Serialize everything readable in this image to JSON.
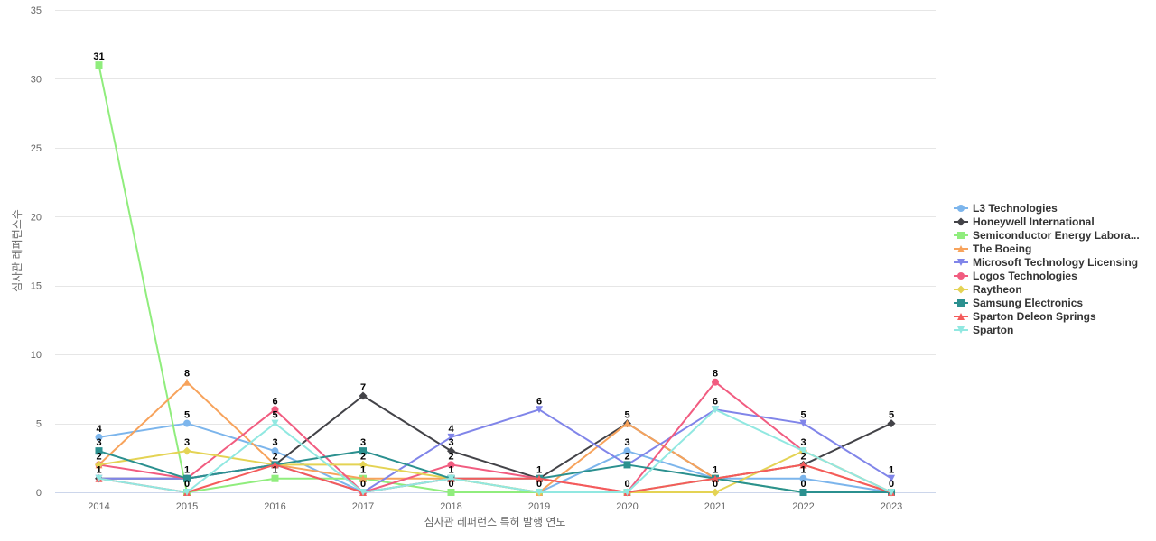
{
  "chart_data": {
    "type": "line",
    "title": "",
    "xlabel": "심사관 레퍼런스 특허 발행 연도",
    "ylabel": "심사관 레퍼런스수",
    "x": [
      "2014",
      "2015",
      "2016",
      "2017",
      "2018",
      "2019",
      "2020",
      "2021",
      "2022",
      "2023"
    ],
    "ylim": [
      0,
      35
    ],
    "yticks": [
      0,
      5,
      10,
      15,
      20,
      25,
      30,
      35
    ],
    "grid": true,
    "legend_position": "right",
    "series": [
      {
        "name": "L3 Technologies",
        "values": [
          4,
          5,
          3,
          0,
          1,
          0,
          3,
          1,
          1,
          0
        ],
        "color": "#7cb5ec",
        "marker": "circle"
      },
      {
        "name": "Honeywell International",
        "values": [
          1,
          1,
          2,
          7,
          3,
          1,
          5,
          1,
          2,
          5
        ],
        "color": "#434348",
        "marker": "diamond"
      },
      {
        "name": "Semiconductor Energy Labora...",
        "values": [
          31,
          0,
          1,
          1,
          0,
          0,
          0,
          1,
          0,
          0
        ],
        "color": "#90ed7d",
        "marker": "square"
      },
      {
        "name": "The Boeing",
        "values": [
          2,
          8,
          2,
          1,
          1,
          0,
          5,
          1,
          2,
          0
        ],
        "color": "#f7a35c",
        "marker": "triangle"
      },
      {
        "name": "Microsoft Technology Licensing",
        "values": [
          1,
          1,
          2,
          0,
          4,
          6,
          2,
          6,
          5,
          1
        ],
        "color": "#8085e9",
        "marker": "triangle-down"
      },
      {
        "name": "Logos Technologies",
        "values": [
          2,
          1,
          6,
          0,
          2,
          1,
          0,
          8,
          3,
          0
        ],
        "color": "#f15c80",
        "marker": "circle"
      },
      {
        "name": "Raytheon",
        "values": [
          2,
          3,
          2,
          2,
          1,
          0,
          0,
          0,
          3,
          0
        ],
        "color": "#e4d354",
        "marker": "diamond"
      },
      {
        "name": "Samsung Electronics",
        "values": [
          3,
          1,
          2,
          3,
          1,
          1,
          2,
          1,
          0,
          0
        ],
        "color": "#2b908f",
        "marker": "square"
      },
      {
        "name": "Sparton Deleon Springs",
        "values": [
          1,
          0,
          2,
          0,
          1,
          1,
          0,
          1,
          2,
          0
        ],
        "color": "#f45b5b",
        "marker": "triangle"
      },
      {
        "name": "Sparton",
        "values": [
          1,
          0,
          5,
          0,
          1,
          0,
          0,
          6,
          3,
          0
        ],
        "color": "#91e8e1",
        "marker": "triangle-down"
      }
    ],
    "data_labels": [
      {
        "x": "2014",
        "values": [
          31,
          4,
          3,
          2,
          1
        ]
      },
      {
        "x": "2015",
        "values": [
          8,
          5,
          3,
          1,
          0
        ]
      },
      {
        "x": "2016",
        "values": [
          6,
          5,
          3,
          2,
          1
        ]
      },
      {
        "x": "2017",
        "values": [
          7,
          3,
          2,
          1,
          0
        ]
      },
      {
        "x": "2018",
        "values": [
          4,
          3,
          2,
          1,
          0
        ]
      },
      {
        "x": "2019",
        "values": [
          6,
          1,
          0
        ]
      },
      {
        "x": "2020",
        "values": [
          5,
          3,
          2,
          0
        ]
      },
      {
        "x": "2021",
        "values": [
          8,
          6,
          1,
          0
        ]
      },
      {
        "x": "2022",
        "values": [
          5,
          3,
          2,
          1,
          0
        ]
      },
      {
        "x": "2023",
        "values": [
          5,
          1,
          0
        ]
      }
    ]
  }
}
